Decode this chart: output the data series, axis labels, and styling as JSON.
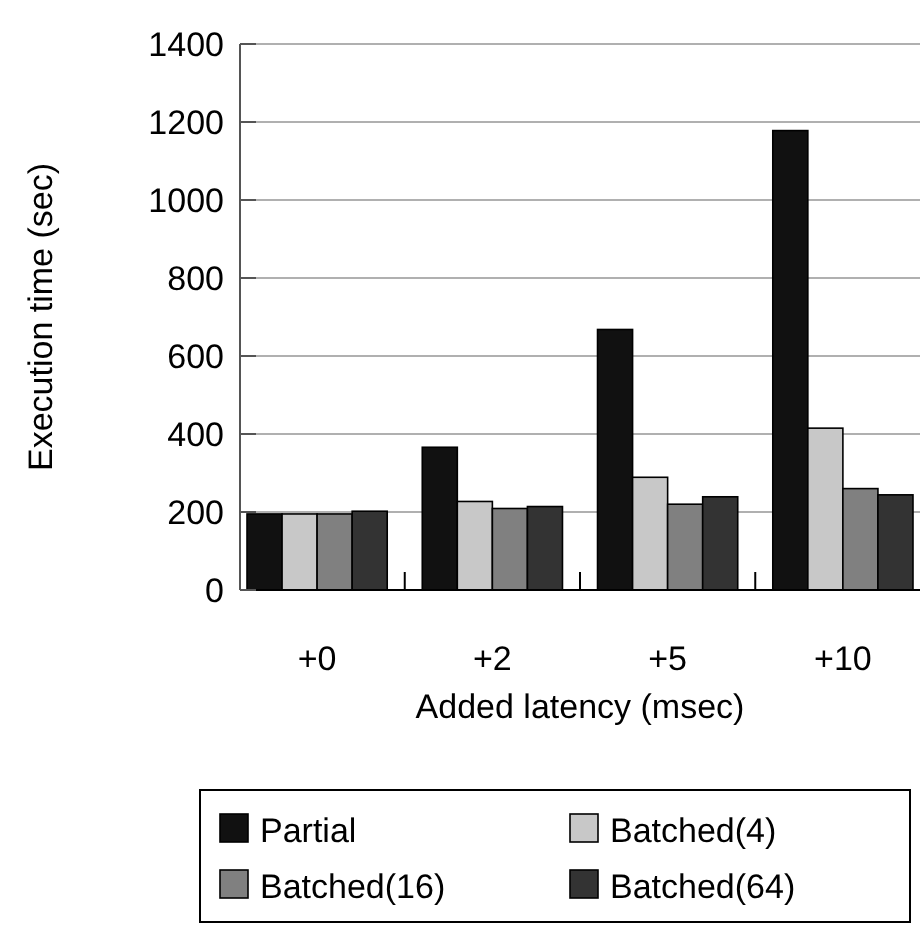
{
  "chart_data": {
    "type": "bar",
    "xlabel": "Added latency (msec)",
    "ylabel": "Execution time (sec)",
    "categories": [
      "+0",
      "+2",
      "+5",
      "+10"
    ],
    "series": [
      {
        "name": "Partial",
        "color": "#111111",
        "values": [
          195,
          366,
          668,
          1178
        ]
      },
      {
        "name": "Batched(4)",
        "color": "#c8c8c8",
        "values": [
          195,
          227,
          289,
          415
        ]
      },
      {
        "name": "Batched(16)",
        "color": "#808080",
        "values": [
          195,
          209,
          220,
          260
        ]
      },
      {
        "name": "Batched(64)",
        "color": "#333333",
        "values": [
          202,
          214,
          239,
          244
        ]
      }
    ],
    "ylim": [
      0,
      1400
    ],
    "yticks": [
      0,
      200,
      400,
      600,
      800,
      1000,
      1200,
      1400
    ],
    "grid": "y",
    "legend": "bottom"
  }
}
